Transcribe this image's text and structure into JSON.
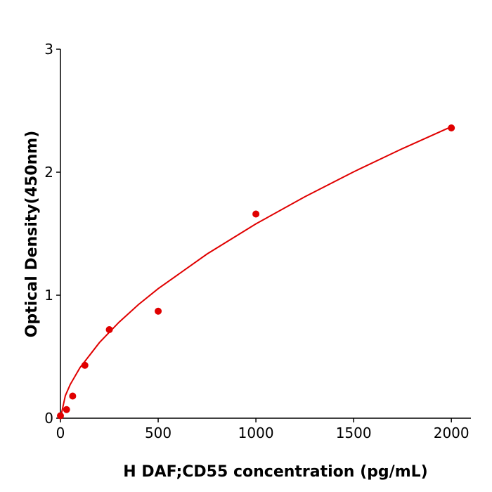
{
  "chart_data": {
    "type": "scatter",
    "xlabel": "H  DAF;CD55 concentration (pg/mL)",
    "ylabel": "Optical Density(450nm)",
    "xlim": [
      0,
      2100
    ],
    "ylim": [
      0,
      3
    ],
    "xticks": [
      0,
      500,
      1000,
      1500,
      2000
    ],
    "yticks": [
      0,
      1,
      2,
      3
    ],
    "grid": false,
    "series": [
      {
        "type": "scatter",
        "color": "#e00000",
        "x": [
          0,
          31.25,
          62.5,
          125,
          250,
          500,
          1000,
          2000
        ],
        "values": [
          0.02,
          0.07,
          0.18,
          0.43,
          0.72,
          0.87,
          1.66,
          2.36
        ]
      },
      {
        "type": "line",
        "color": "#e00000",
        "x": [
          0,
          25,
          50,
          100,
          200,
          300,
          400,
          500,
          750,
          1000,
          1250,
          1500,
          1750,
          2000
        ],
        "values": [
          0,
          0.183,
          0.274,
          0.411,
          0.616,
          0.781,
          0.925,
          1.053,
          1.335,
          1.58,
          1.8,
          2.003,
          2.192,
          2.37
        ]
      }
    ]
  }
}
